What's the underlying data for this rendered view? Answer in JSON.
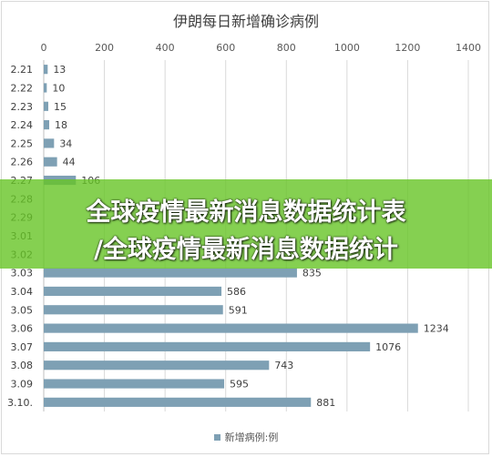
{
  "chart_data": {
    "type": "bar",
    "orientation": "horizontal",
    "title": "伊朗每日新增确诊病例",
    "categories": [
      "2.21",
      "2.22",
      "2.23",
      "2.24",
      "2.25",
      "2.26",
      "2.27",
      "2.28",
      "2.29",
      "3.01",
      "3.02",
      "3.03",
      "3.04",
      "3.05",
      "3.06",
      "3.07",
      "3.08",
      "3.09",
      "3.10."
    ],
    "series": [
      {
        "name": "新增病例:例",
        "values": [
          13,
          10,
          15,
          18,
          34,
          44,
          106,
          null,
          null,
          null,
          null,
          835,
          586,
          591,
          1234,
          1076,
          743,
          595,
          881
        ]
      }
    ],
    "value_labels": [
      "13",
      "10",
      "15",
      "18",
      "34",
      "44",
      "106",
      "",
      "",
      "",
      "",
      "835",
      "586",
      "591",
      "1234",
      "1076",
      "743",
      "595",
      "881"
    ],
    "xlim": [
      0,
      1400
    ],
    "x_ticks": [
      0,
      200,
      400,
      600,
      800,
      1000,
      1200,
      1400
    ],
    "x_axis_position": "top",
    "grid": true,
    "legend_position": "bottom",
    "bar_color": "#7ea0b4"
  },
  "banner": {
    "line1": "全球疫情最新消息数据统计表",
    "line2": "/全球疫情最新消息数据统计",
    "color": "#66c426"
  }
}
